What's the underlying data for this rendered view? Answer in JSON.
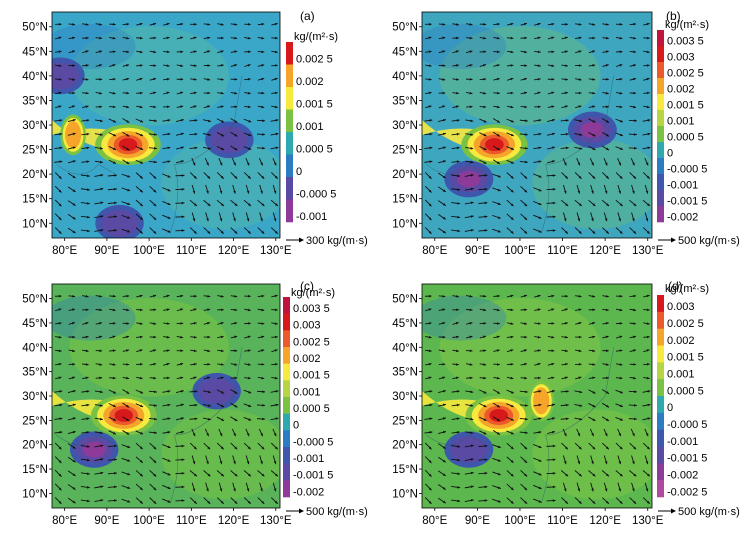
{
  "chart_data": [
    {
      "panel": "(a)",
      "type": "heatmap",
      "x_ticks": [
        "80°E",
        "90°E",
        "100°E",
        "110°E",
        "120°E",
        "130°E"
      ],
      "y_ticks": [
        "10°N",
        "15°N",
        "20°N",
        "25°N",
        "30°N",
        "35°N",
        "40°N",
        "45°N",
        "50°N"
      ],
      "xlim": [
        77,
        131
      ],
      "ylim": [
        7,
        53
      ],
      "colorbar_unit": "kg/(m²·s)",
      "colorbar_levels": [
        "0.002 5",
        "0.002",
        "0.001 5",
        "0.001",
        "0.000 5",
        "0",
        "-0.000 5",
        "-0.001"
      ],
      "colorbar_colors": [
        "#d7191c",
        "#f4a52a",
        "#f7e93e",
        "#7bc142",
        "#2fa9b0",
        "#2b7cc2",
        "#5a4aa3",
        "#8e3a98"
      ],
      "reference_vector": "300 kg/(m·s)",
      "features": [
        {
          "lon": 95,
          "lat": 26,
          "value": 0.0028
        },
        {
          "lon": 82,
          "lat": 28,
          "value": 0.0015
        },
        {
          "lon": 119,
          "lat": 27,
          "value": -0.0012
        },
        {
          "lon": 93,
          "lat": 10,
          "value": -0.001
        },
        {
          "lon": 79,
          "lat": 40,
          "value": -0.0008
        }
      ]
    },
    {
      "panel": "(b)",
      "type": "heatmap",
      "x_ticks": [
        "80°E",
        "90°E",
        "100°E",
        "110°E",
        "120°E",
        "130°E"
      ],
      "y_ticks": [
        "10°N",
        "15°N",
        "20°N",
        "25°N",
        "30°N",
        "35°N",
        "40°N",
        "45°N",
        "50°N"
      ],
      "xlim": [
        77,
        131
      ],
      "ylim": [
        7,
        53
      ],
      "colorbar_unit": "kg/(m²·s)",
      "colorbar_levels": [
        "0.003 5",
        "0.003",
        "0.002 5",
        "0.002",
        "0.001 5",
        "0.001",
        "0.000 5",
        "0",
        "-0.000 5",
        "-0.001",
        "-0.001 5",
        "-0.002"
      ],
      "colorbar_colors": [
        "#c0143c",
        "#d7191c",
        "#ec5a2c",
        "#f4a52a",
        "#f7e93e",
        "#b5d543",
        "#7bc142",
        "#2fa9b0",
        "#2b7cc2",
        "#3f56ad",
        "#5a4aa3",
        "#8e3a98"
      ],
      "reference_vector": "500 kg/(m·s)",
      "features": [
        {
          "lon": 94,
          "lat": 26,
          "value": 0.0033
        },
        {
          "lon": 88,
          "lat": 19,
          "value": -0.0018
        },
        {
          "lon": 117,
          "lat": 29,
          "value": -0.0015
        }
      ]
    },
    {
      "panel": "(c)",
      "type": "heatmap",
      "x_ticks": [
        "80°E",
        "90°E",
        "100°E",
        "110°E",
        "120°E",
        "130°E"
      ],
      "y_ticks": [
        "10°N",
        "15°N",
        "20°N",
        "25°N",
        "30°N",
        "35°N",
        "40°N",
        "45°N",
        "50°N"
      ],
      "xlim": [
        77,
        131
      ],
      "ylim": [
        7,
        53
      ],
      "colorbar_unit": "kg/(m²·s)",
      "colorbar_levels": [
        "0.003 5",
        "0.003",
        "0.002 5",
        "0.002",
        "0.001 5",
        "0.001",
        "0.000 5",
        "0",
        "-0.000 5",
        "-0.001",
        "-0.001 5",
        "-0.002"
      ],
      "colorbar_colors": [
        "#c0143c",
        "#d7191c",
        "#ec5a2c",
        "#f4a52a",
        "#f7e93e",
        "#b5d543",
        "#7bc142",
        "#2fa9b0",
        "#2b7cc2",
        "#3f56ad",
        "#5a4aa3",
        "#8e3a98"
      ],
      "reference_vector": "500 kg/(m·s)",
      "features": [
        {
          "lon": 94,
          "lat": 26,
          "value": 0.0035
        },
        {
          "lon": 87,
          "lat": 19,
          "value": -0.0021
        },
        {
          "lon": 116,
          "lat": 31,
          "value": -0.0012
        }
      ]
    },
    {
      "panel": "(d)",
      "type": "heatmap",
      "x_ticks": [
        "80°E",
        "90°E",
        "100°E",
        "110°E",
        "120°E",
        "130°E"
      ],
      "y_ticks": [
        "10°N",
        "15°N",
        "20°N",
        "25°N",
        "30°N",
        "35°N",
        "40°N",
        "45°N",
        "50°N"
      ],
      "xlim": [
        77,
        131
      ],
      "ylim": [
        7,
        53
      ],
      "colorbar_unit": "kg/(m²·s)",
      "colorbar_levels": [
        "0.003",
        "0.002 5",
        "0.002",
        "0.001 5",
        "0.001",
        "0.000 5",
        "0",
        "-0.000 5",
        "-0.001",
        "-0.001 5",
        "-0.002",
        "-0.002 5"
      ],
      "colorbar_colors": [
        "#d7191c",
        "#ec5a2c",
        "#f4a52a",
        "#f7e93e",
        "#b5d543",
        "#7bc142",
        "#2fa9b0",
        "#2b7cc2",
        "#3f56ad",
        "#5a4aa3",
        "#8e3a98",
        "#b04a9e"
      ],
      "reference_vector": "500 kg/(m·s)",
      "features": [
        {
          "lon": 95,
          "lat": 26,
          "value": 0.003
        },
        {
          "lon": 88,
          "lat": 19,
          "value": -0.0012
        },
        {
          "lon": 105,
          "lat": 29,
          "value": 0.0014
        }
      ]
    }
  ]
}
